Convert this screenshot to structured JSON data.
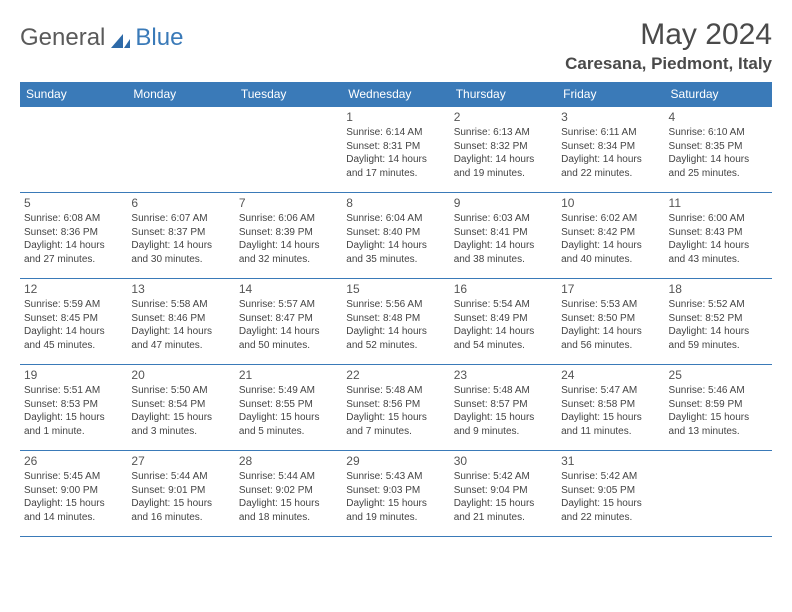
{
  "logo": {
    "text1": "General",
    "text2": "Blue"
  },
  "title": "May 2024",
  "location": "Caresana, Piedmont, Italy",
  "colors": {
    "header_bg": "#3a7ab8",
    "header_text": "#ffffff",
    "border": "#3a7ab8",
    "text": "#444444",
    "daynum": "#555555",
    "title_color": "#4a4a4a"
  },
  "day_headers": [
    "Sunday",
    "Monday",
    "Tuesday",
    "Wednesday",
    "Thursday",
    "Friday",
    "Saturday"
  ],
  "weeks": [
    [
      null,
      null,
      null,
      {
        "n": "1",
        "sr": "6:14 AM",
        "ss": "8:31 PM",
        "dl": "14 hours and 17 minutes."
      },
      {
        "n": "2",
        "sr": "6:13 AM",
        "ss": "8:32 PM",
        "dl": "14 hours and 19 minutes."
      },
      {
        "n": "3",
        "sr": "6:11 AM",
        "ss": "8:34 PM",
        "dl": "14 hours and 22 minutes."
      },
      {
        "n": "4",
        "sr": "6:10 AM",
        "ss": "8:35 PM",
        "dl": "14 hours and 25 minutes."
      }
    ],
    [
      {
        "n": "5",
        "sr": "6:08 AM",
        "ss": "8:36 PM",
        "dl": "14 hours and 27 minutes."
      },
      {
        "n": "6",
        "sr": "6:07 AM",
        "ss": "8:37 PM",
        "dl": "14 hours and 30 minutes."
      },
      {
        "n": "7",
        "sr": "6:06 AM",
        "ss": "8:39 PM",
        "dl": "14 hours and 32 minutes."
      },
      {
        "n": "8",
        "sr": "6:04 AM",
        "ss": "8:40 PM",
        "dl": "14 hours and 35 minutes."
      },
      {
        "n": "9",
        "sr": "6:03 AM",
        "ss": "8:41 PM",
        "dl": "14 hours and 38 minutes."
      },
      {
        "n": "10",
        "sr": "6:02 AM",
        "ss": "8:42 PM",
        "dl": "14 hours and 40 minutes."
      },
      {
        "n": "11",
        "sr": "6:00 AM",
        "ss": "8:43 PM",
        "dl": "14 hours and 43 minutes."
      }
    ],
    [
      {
        "n": "12",
        "sr": "5:59 AM",
        "ss": "8:45 PM",
        "dl": "14 hours and 45 minutes."
      },
      {
        "n": "13",
        "sr": "5:58 AM",
        "ss": "8:46 PM",
        "dl": "14 hours and 47 minutes."
      },
      {
        "n": "14",
        "sr": "5:57 AM",
        "ss": "8:47 PM",
        "dl": "14 hours and 50 minutes."
      },
      {
        "n": "15",
        "sr": "5:56 AM",
        "ss": "8:48 PM",
        "dl": "14 hours and 52 minutes."
      },
      {
        "n": "16",
        "sr": "5:54 AM",
        "ss": "8:49 PM",
        "dl": "14 hours and 54 minutes."
      },
      {
        "n": "17",
        "sr": "5:53 AM",
        "ss": "8:50 PM",
        "dl": "14 hours and 56 minutes."
      },
      {
        "n": "18",
        "sr": "5:52 AM",
        "ss": "8:52 PM",
        "dl": "14 hours and 59 minutes."
      }
    ],
    [
      {
        "n": "19",
        "sr": "5:51 AM",
        "ss": "8:53 PM",
        "dl": "15 hours and 1 minute."
      },
      {
        "n": "20",
        "sr": "5:50 AM",
        "ss": "8:54 PM",
        "dl": "15 hours and 3 minutes."
      },
      {
        "n": "21",
        "sr": "5:49 AM",
        "ss": "8:55 PM",
        "dl": "15 hours and 5 minutes."
      },
      {
        "n": "22",
        "sr": "5:48 AM",
        "ss": "8:56 PM",
        "dl": "15 hours and 7 minutes."
      },
      {
        "n": "23",
        "sr": "5:48 AM",
        "ss": "8:57 PM",
        "dl": "15 hours and 9 minutes."
      },
      {
        "n": "24",
        "sr": "5:47 AM",
        "ss": "8:58 PM",
        "dl": "15 hours and 11 minutes."
      },
      {
        "n": "25",
        "sr": "5:46 AM",
        "ss": "8:59 PM",
        "dl": "15 hours and 13 minutes."
      }
    ],
    [
      {
        "n": "26",
        "sr": "5:45 AM",
        "ss": "9:00 PM",
        "dl": "15 hours and 14 minutes."
      },
      {
        "n": "27",
        "sr": "5:44 AM",
        "ss": "9:01 PM",
        "dl": "15 hours and 16 minutes."
      },
      {
        "n": "28",
        "sr": "5:44 AM",
        "ss": "9:02 PM",
        "dl": "15 hours and 18 minutes."
      },
      {
        "n": "29",
        "sr": "5:43 AM",
        "ss": "9:03 PM",
        "dl": "15 hours and 19 minutes."
      },
      {
        "n": "30",
        "sr": "5:42 AM",
        "ss": "9:04 PM",
        "dl": "15 hours and 21 minutes."
      },
      {
        "n": "31",
        "sr": "5:42 AM",
        "ss": "9:05 PM",
        "dl": "15 hours and 22 minutes."
      },
      null
    ]
  ],
  "labels": {
    "sunrise": "Sunrise:",
    "sunset": "Sunset:",
    "daylight": "Daylight:"
  }
}
